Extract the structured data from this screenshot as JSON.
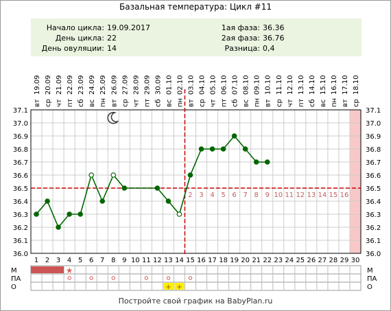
{
  "header": {
    "title": "Базальная температура: Цикл #11"
  },
  "info": {
    "start_label": "Начало цикла:",
    "start_value": "19.09.2017",
    "day_label": "День цикла:",
    "day_value": "22",
    "ovulation_label": "День овуляции:",
    "ovulation_value": "14",
    "phase1_label": "1ая фаза:",
    "phase1_value": "36.36",
    "phase2_label": "2ая фаза:",
    "phase2_value": "36.76",
    "diff_label": "Разница:",
    "diff_value": "0,4"
  },
  "footer": {
    "text": "Постройте свой график на BabyPlan.ru"
  },
  "row_labels": {
    "m": "М",
    "pa": "ПА",
    "o": "О"
  },
  "colors": {
    "line": "#006600",
    "coverline": "#cc0000",
    "ovulation": "#cc0000",
    "panel": "#eaf4e0",
    "highlight": "#f8c8c8",
    "menses": "#cc5555",
    "o_mark": "#ffee00"
  },
  "chart_data": {
    "type": "line",
    "title": "Базальная температура: Цикл #11",
    "dates": [
      "19.09",
      "20.09",
      "21.09",
      "22.09",
      "23.09",
      "24.09",
      "25.09",
      "26.09",
      "27.09",
      "28.09",
      "29.09",
      "30.09",
      "01.10",
      "02.10",
      "03.10",
      "04.10",
      "05.10",
      "06.10",
      "07.10",
      "08.10",
      "09.10",
      "10.10",
      "11.10",
      "12.10",
      "13.10",
      "14.10",
      "15.10",
      "16.10",
      "17.10",
      "18.10"
    ],
    "weekdays": [
      "вт",
      "ср",
      "чт",
      "пт",
      "сб",
      "вс",
      "пн",
      "вт",
      "ср",
      "чт",
      "пт",
      "сб",
      "вс",
      "пн",
      "вт",
      "ср",
      "чт",
      "пт",
      "сб",
      "вс",
      "пн",
      "вт",
      "ср",
      "чт",
      "пт",
      "сб",
      "вс",
      "пн",
      "вт",
      "ср"
    ],
    "days": [
      1,
      2,
      3,
      4,
      5,
      6,
      7,
      8,
      9,
      10,
      11,
      12,
      13,
      14,
      15,
      16,
      17,
      18,
      19,
      20,
      21,
      22,
      23,
      24,
      25,
      26,
      27,
      28,
      29,
      30
    ],
    "ylim": [
      36.0,
      37.1
    ],
    "yticks": [
      "36.0",
      "36.1",
      "36.2",
      "36.3",
      "36.4",
      "36.5",
      "36.6",
      "36.7",
      "36.8",
      "36.9",
      "37.0",
      "37.1"
    ],
    "series": [
      {
        "values": [
          36.3,
          36.4,
          36.2,
          36.3,
          36.3,
          36.6,
          36.4,
          36.6,
          36.5,
          null,
          null,
          36.5,
          36.4,
          36.3,
          36.6,
          36.8,
          36.8,
          36.8,
          36.9,
          36.8,
          36.7,
          36.7,
          null,
          null,
          null,
          null,
          null,
          null,
          null,
          null
        ]
      }
    ],
    "open_points": [
      6,
      8,
      14
    ],
    "coverline": 36.5,
    "ovulation_day": 14,
    "luteal_labels": [
      "2",
      "3",
      "4",
      "5",
      "6",
      "7",
      "8",
      "9",
      "10",
      "11",
      "12",
      "13",
      "14",
      "15",
      "16"
    ],
    "highlight_day": 30,
    "moon_day": 8,
    "menses_days": [
      1,
      2,
      3
    ],
    "star_day": 4,
    "pa_days": [
      4,
      6,
      8,
      11,
      13,
      15
    ],
    "o_days": [
      13,
      14
    ]
  }
}
